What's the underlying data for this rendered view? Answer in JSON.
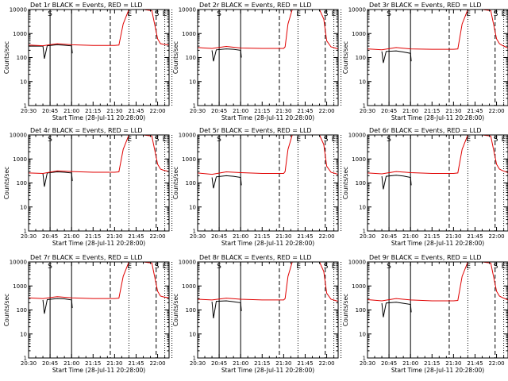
{
  "colors": {
    "events": "#000000",
    "lld": "#e00000",
    "axis": "#000000",
    "background": "#ffffff"
  },
  "chart_data": [
    {
      "type": "line",
      "title": "Det 1r BLACK = Events, RED = LLD",
      "xlabel": "Start Time (28-Jul-11 20:28:00)",
      "ylabel": "Counts/sec",
      "xlim": [
        "20:30",
        "22:08"
      ],
      "ylim": [
        1,
        10000
      ],
      "yscale": "log",
      "x_ticks": [
        "20:30",
        "20:45",
        "21:00",
        "21:15",
        "21:30",
        "21:45",
        "22:00"
      ],
      "y_ticks": [
        "1",
        "10",
        "100",
        "1000",
        "10000"
      ],
      "markers": [
        "S",
        "E"
      ],
      "series": [
        {
          "name": "BLACK = Events",
          "color": "#000000",
          "x": [
            "20:30",
            "20:40",
            "20:41",
            "20:43",
            "20:50",
            "20:55",
            "21:00",
            "21:00:30"
          ],
          "y": [
            300,
            300,
            90,
            310,
            340,
            325,
            305,
            150
          ]
        },
        {
          "name": "RED = LLD",
          "color": "#e00000",
          "x": [
            "20:30",
            "20:40",
            "20:50",
            "21:00",
            "21:15",
            "21:30",
            "21:33",
            "21:36",
            "21:40",
            "21:45",
            "21:50",
            "21:56",
            "22:00",
            "22:02",
            "22:04",
            "22:08"
          ],
          "y": [
            330,
            310,
            380,
            340,
            320,
            320,
            330,
            2500,
            10000,
            10000,
            10000,
            9000,
            600,
            380,
            360,
            330
          ]
        }
      ]
    },
    {
      "type": "line",
      "title": "Det 2r BLACK = Events, RED = LLD",
      "xlabel": "Start Time (28-Jul-11 20:28:00)",
      "ylabel": "Counts/sec",
      "xlim": [
        "20:30",
        "22:08"
      ],
      "ylim": [
        1,
        10000
      ],
      "yscale": "log",
      "x_ticks": [
        "20:30",
        "20:45",
        "21:00",
        "21:15",
        "21:30",
        "21:45",
        "22:00"
      ],
      "y_ticks": [
        "1",
        "10",
        "100",
        "1000",
        "10000"
      ],
      "markers": [
        "S",
        "E"
      ],
      "series": [
        {
          "name": "BLACK = Events",
          "color": "#000000",
          "x": [
            "20:40",
            "20:41",
            "20:43",
            "20:50",
            "20:55",
            "21:00",
            "21:00:30"
          ],
          "y": [
            200,
            70,
            210,
            230,
            220,
            200,
            100
          ]
        },
        {
          "name": "RED = LLD",
          "color": "#e00000",
          "x": [
            "20:30",
            "20:40",
            "20:50",
            "21:00",
            "21:15",
            "21:30",
            "21:31",
            "21:33",
            "21:36",
            "21:40",
            "21:45",
            "21:50",
            "21:55",
            "21:58",
            "22:00",
            "22:03",
            "22:08"
          ],
          "y": [
            260,
            240,
            290,
            250,
            240,
            240,
            280,
            2500,
            10000,
            10000,
            10000,
            10000,
            10000,
            4000,
            500,
            280,
            230
          ]
        }
      ]
    },
    {
      "type": "line",
      "title": "Det 3r BLACK = Events, RED = LLD",
      "xlabel": "Start Time (28-Jul-11 20:28:00)",
      "ylabel": "Counts/sec",
      "xlim": [
        "20:30",
        "22:08"
      ],
      "ylim": [
        1,
        10000
      ],
      "yscale": "log",
      "x_ticks": [
        "20:30",
        "20:45",
        "21:00",
        "21:15",
        "21:30",
        "21:45",
        "22:00"
      ],
      "y_ticks": [
        "1",
        "10",
        "100",
        "1000",
        "10000"
      ],
      "markers": [
        "S",
        "E"
      ],
      "series": [
        {
          "name": "BLACK = Events",
          "color": "#000000",
          "x": [
            "20:40",
            "20:41",
            "20:43",
            "20:50",
            "20:55",
            "21:00",
            "21:00:30"
          ],
          "y": [
            180,
            60,
            180,
            190,
            170,
            150,
            70
          ]
        },
        {
          "name": "RED = LLD",
          "color": "#e00000",
          "x": [
            "20:30",
            "20:40",
            "20:50",
            "21:00",
            "21:15",
            "21:30",
            "21:33",
            "21:36",
            "21:40",
            "21:45",
            "21:50",
            "21:56",
            "22:00",
            "22:02",
            "22:04",
            "22:08"
          ],
          "y": [
            230,
            210,
            260,
            230,
            220,
            220,
            230,
            2500,
            10000,
            10000,
            10000,
            9000,
            600,
            380,
            320,
            250
          ]
        }
      ]
    },
    {
      "type": "line",
      "title": "Det 4r BLACK = Events, RED = LLD",
      "xlabel": "Start Time (28-Jul-11 20:28:00)",
      "ylabel": "Counts/sec",
      "xlim": [
        "20:30",
        "22:08"
      ],
      "ylim": [
        1,
        10000
      ],
      "yscale": "log",
      "x_ticks": [
        "20:30",
        "20:45",
        "21:00",
        "21:15",
        "21:30",
        "21:45",
        "22:00"
      ],
      "y_ticks": [
        "1",
        "10",
        "100",
        "1000",
        "10000"
      ],
      "markers": [
        "S",
        "E"
      ],
      "series": [
        {
          "name": "BLACK = Events",
          "color": "#000000",
          "x": [
            "20:40",
            "20:41",
            "20:43",
            "20:50",
            "20:55",
            "21:00",
            "21:00:30"
          ],
          "y": [
            240,
            70,
            260,
            290,
            280,
            260,
            120
          ]
        },
        {
          "name": "RED = LLD",
          "color": "#e00000",
          "x": [
            "20:30",
            "20:40",
            "20:50",
            "21:00",
            "21:15",
            "21:30",
            "21:33",
            "21:36",
            "21:40",
            "21:45",
            "21:50",
            "21:56",
            "22:00",
            "22:02",
            "22:04",
            "22:08"
          ],
          "y": [
            260,
            250,
            320,
            300,
            280,
            280,
            290,
            2500,
            10000,
            10000,
            10000,
            9000,
            600,
            380,
            340,
            300
          ]
        }
      ]
    },
    {
      "type": "line",
      "title": "Det 5r BLACK = Events, RED = LLD",
      "xlabel": "Start Time (28-Jul-11 20:28:00)",
      "ylabel": "Counts/sec",
      "xlim": [
        "20:30",
        "22:08"
      ],
      "ylim": [
        1,
        10000
      ],
      "yscale": "log",
      "x_ticks": [
        "20:30",
        "20:45",
        "21:00",
        "21:15",
        "21:30",
        "21:45",
        "22:00"
      ],
      "y_ticks": [
        "1",
        "10",
        "100",
        "1000",
        "10000"
      ],
      "markers": [
        "S",
        "E"
      ],
      "series": [
        {
          "name": "BLACK = Events",
          "color": "#000000",
          "x": [
            "20:40",
            "20:41",
            "20:43",
            "20:50",
            "20:55",
            "21:00",
            "21:00:30"
          ],
          "y": [
            170,
            60,
            180,
            200,
            190,
            170,
            80
          ]
        },
        {
          "name": "RED = LLD",
          "color": "#e00000",
          "x": [
            "20:30",
            "20:40",
            "20:50",
            "21:00",
            "21:15",
            "21:30",
            "21:31",
            "21:33",
            "21:36",
            "21:40",
            "21:45",
            "21:50",
            "21:55",
            "21:58",
            "22:00",
            "22:03",
            "22:08"
          ],
          "y": [
            260,
            230,
            290,
            270,
            250,
            250,
            300,
            2500,
            10000,
            10000,
            10000,
            10000,
            10000,
            4000,
            500,
            280,
            230
          ]
        }
      ]
    },
    {
      "type": "line",
      "title": "Det 6r BLACK = Events, RED = LLD",
      "xlabel": "Start Time (28-Jul-11 20:28:00)",
      "ylabel": "Counts/sec",
      "xlim": [
        "20:30",
        "22:08"
      ],
      "ylim": [
        1,
        10000
      ],
      "yscale": "log",
      "x_ticks": [
        "20:30",
        "20:45",
        "21:00",
        "21:15",
        "21:30",
        "21:45",
        "22:00"
      ],
      "y_ticks": [
        "1",
        "10",
        "100",
        "1000",
        "10000"
      ],
      "markers": [
        "S",
        "E"
      ],
      "series": [
        {
          "name": "BLACK = Events",
          "color": "#000000",
          "x": [
            "20:40",
            "20:41",
            "20:43",
            "20:50",
            "20:55",
            "21:00",
            "21:00:30"
          ],
          "y": [
            190,
            55,
            190,
            210,
            195,
            170,
            80
          ]
        },
        {
          "name": "RED = LLD",
          "color": "#e00000",
          "x": [
            "20:30",
            "20:40",
            "20:50",
            "21:00",
            "21:15",
            "21:30",
            "21:33",
            "21:36",
            "21:40",
            "21:45",
            "21:50",
            "21:56",
            "22:00",
            "22:02",
            "22:04",
            "22:08"
          ],
          "y": [
            260,
            240,
            300,
            270,
            250,
            250,
            260,
            2500,
            10000,
            10000,
            10000,
            9000,
            600,
            380,
            330,
            270
          ]
        }
      ]
    },
    {
      "type": "line",
      "title": "Det 7r BLACK = Events, RED = LLD",
      "xlabel": "Start Time (28-Jul-11 20:28:00)",
      "ylabel": "Counts/sec",
      "xlim": [
        "20:30",
        "22:08"
      ],
      "ylim": [
        1,
        10000
      ],
      "yscale": "log",
      "x_ticks": [
        "20:30",
        "20:45",
        "21:00",
        "21:15",
        "21:30",
        "21:45",
        "22:00"
      ],
      "y_ticks": [
        "1",
        "10",
        "100",
        "1000",
        "10000"
      ],
      "markers": [
        "S",
        "E"
      ],
      "series": [
        {
          "name": "BLACK = Events",
          "color": "#000000",
          "x": [
            "20:40",
            "20:41",
            "20:43",
            "20:50",
            "20:55",
            "21:00",
            "21:00:30"
          ],
          "y": [
            260,
            70,
            270,
            300,
            290,
            260,
            120
          ]
        },
        {
          "name": "RED = LLD",
          "color": "#e00000",
          "x": [
            "20:30",
            "20:40",
            "20:50",
            "21:00",
            "21:15",
            "21:30",
            "21:33",
            "21:36",
            "21:40",
            "21:45",
            "21:50",
            "21:56",
            "22:00",
            "22:02",
            "22:04",
            "22:08"
          ],
          "y": [
            320,
            300,
            360,
            320,
            300,
            300,
            310,
            2500,
            10000,
            10000,
            10000,
            9000,
            600,
            380,
            350,
            320
          ]
        }
      ]
    },
    {
      "type": "line",
      "title": "Det 8r BLACK = Events, RED = LLD",
      "xlabel": "Start Time (28-Jul-11 20:28:00)",
      "ylabel": "Counts/sec",
      "xlim": [
        "20:30",
        "22:08"
      ],
      "ylim": [
        1,
        10000
      ],
      "yscale": "log",
      "x_ticks": [
        "20:30",
        "20:45",
        "21:00",
        "21:15",
        "21:30",
        "21:45",
        "22:00"
      ],
      "y_ticks": [
        "1",
        "10",
        "100",
        "1000",
        "10000"
      ],
      "markers": [
        "S",
        "E"
      ],
      "series": [
        {
          "name": "BLACK = Events",
          "color": "#000000",
          "x": [
            "20:40",
            "20:41",
            "20:43",
            "20:50",
            "20:55",
            "21:00",
            "21:00:30"
          ],
          "y": [
            220,
            45,
            230,
            240,
            220,
            200,
            90
          ]
        },
        {
          "name": "RED = LLD",
          "color": "#e00000",
          "x": [
            "20:30",
            "20:40",
            "20:50",
            "21:00",
            "21:15",
            "21:30",
            "21:31",
            "21:33",
            "21:36",
            "21:40",
            "21:45",
            "21:50",
            "21:55",
            "21:58",
            "22:00",
            "22:03",
            "22:08"
          ],
          "y": [
            280,
            260,
            310,
            280,
            260,
            260,
            300,
            2500,
            10000,
            10000,
            10000,
            10000,
            10000,
            4000,
            500,
            280,
            230
          ]
        }
      ]
    },
    {
      "type": "line",
      "title": "Det 9r BLACK = Events, RED = LLD",
      "xlabel": "Start Time (28-Jul-11 20:28:00)",
      "ylabel": "Counts/sec",
      "xlim": [
        "20:30",
        "22:08"
      ],
      "ylim": [
        1,
        10000
      ],
      "yscale": "log",
      "x_ticks": [
        "20:30",
        "20:45",
        "21:00",
        "21:15",
        "21:30",
        "21:45",
        "22:00"
      ],
      "y_ticks": [
        "1",
        "10",
        "100",
        "1000",
        "10000"
      ],
      "markers": [
        "S",
        "E"
      ],
      "series": [
        {
          "name": "BLACK = Events",
          "color": "#000000",
          "x": [
            "20:40",
            "20:41",
            "20:43",
            "20:50",
            "20:55",
            "21:00",
            "21:00:30"
          ],
          "y": [
            190,
            50,
            195,
            210,
            190,
            170,
            80
          ]
        },
        {
          "name": "RED = LLD",
          "color": "#e00000",
          "x": [
            "20:30",
            "20:40",
            "20:50",
            "21:00",
            "21:15",
            "21:30",
            "21:33",
            "21:36",
            "21:40",
            "21:45",
            "21:50",
            "21:56",
            "22:00",
            "22:02",
            "22:04",
            "22:08"
          ],
          "y": [
            270,
            240,
            300,
            260,
            240,
            240,
            250,
            2500,
            10000,
            10000,
            10000,
            9000,
            600,
            380,
            330,
            260
          ]
        }
      ]
    }
  ]
}
